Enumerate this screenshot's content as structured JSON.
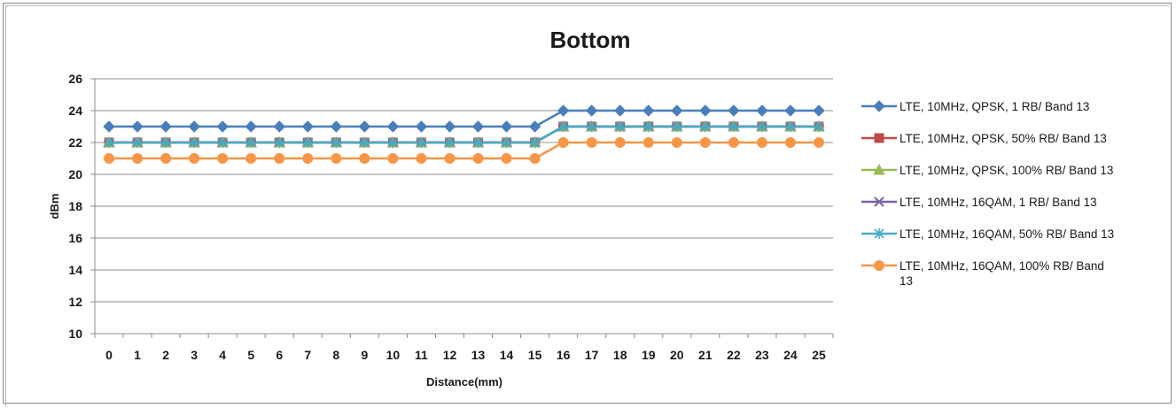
{
  "chart_data": {
    "type": "line",
    "title": "Bottom",
    "xlabel": "Distance(mm)",
    "ylabel": "dBm",
    "ylim": [
      10,
      26
    ],
    "yticks": [
      10,
      12,
      14,
      16,
      18,
      20,
      22,
      24,
      26
    ],
    "x": [
      0,
      1,
      2,
      3,
      4,
      5,
      6,
      7,
      8,
      9,
      10,
      11,
      12,
      13,
      14,
      15,
      16,
      17,
      18,
      19,
      20,
      21,
      22,
      23,
      24,
      25
    ],
    "grid": "horizontal",
    "legend_position": "right",
    "series": [
      {
        "name": "LTE, 10MHz, QPSK, 1 RB/  Band 13",
        "color": "#4a7ebb",
        "marker": "diamond",
        "values": [
          23,
          23,
          23,
          23,
          23,
          23,
          23,
          23,
          23,
          23,
          23,
          23,
          23,
          23,
          23,
          23,
          24,
          24,
          24,
          24,
          24,
          24,
          24,
          24,
          24,
          24
        ]
      },
      {
        "name": "LTE, 10MHz, QPSK, 50% RB/  Band 13",
        "color": "#be4b48",
        "marker": "square",
        "values": [
          22,
          22,
          22,
          22,
          22,
          22,
          22,
          22,
          22,
          22,
          22,
          22,
          22,
          22,
          22,
          22,
          23,
          23,
          23,
          23,
          23,
          23,
          23,
          23,
          23,
          23
        ]
      },
      {
        "name": "LTE, 10MHz, QPSK, 100% RB/  Band 13",
        "color": "#98b954",
        "marker": "triangle",
        "values": [
          22,
          22,
          22,
          22,
          22,
          22,
          22,
          22,
          22,
          22,
          22,
          22,
          22,
          22,
          22,
          22,
          23,
          23,
          23,
          23,
          23,
          23,
          23,
          23,
          23,
          23
        ]
      },
      {
        "name": "LTE, 10MHz, 16QAM, 1 RB/  Band 13",
        "color": "#7d60a0",
        "marker": "x",
        "values": [
          22,
          22,
          22,
          22,
          22,
          22,
          22,
          22,
          22,
          22,
          22,
          22,
          22,
          22,
          22,
          22,
          23,
          23,
          23,
          23,
          23,
          23,
          23,
          23,
          23,
          23
        ]
      },
      {
        "name": "LTE, 10MHz, 16QAM, 50% RB/  Band 13",
        "color": "#46aac5",
        "marker": "star",
        "values": [
          22,
          22,
          22,
          22,
          22,
          22,
          22,
          22,
          22,
          22,
          22,
          22,
          22,
          22,
          22,
          22,
          23,
          23,
          23,
          23,
          23,
          23,
          23,
          23,
          23,
          23
        ]
      },
      {
        "name": "LTE, 10MHz, 16QAM, 100% RB/  Band 13",
        "color": "#f79646",
        "marker": "circle",
        "values": [
          21,
          21,
          21,
          21,
          21,
          21,
          21,
          21,
          21,
          21,
          21,
          21,
          21,
          21,
          21,
          21,
          22,
          22,
          22,
          22,
          22,
          22,
          22,
          22,
          22,
          22
        ]
      }
    ]
  }
}
